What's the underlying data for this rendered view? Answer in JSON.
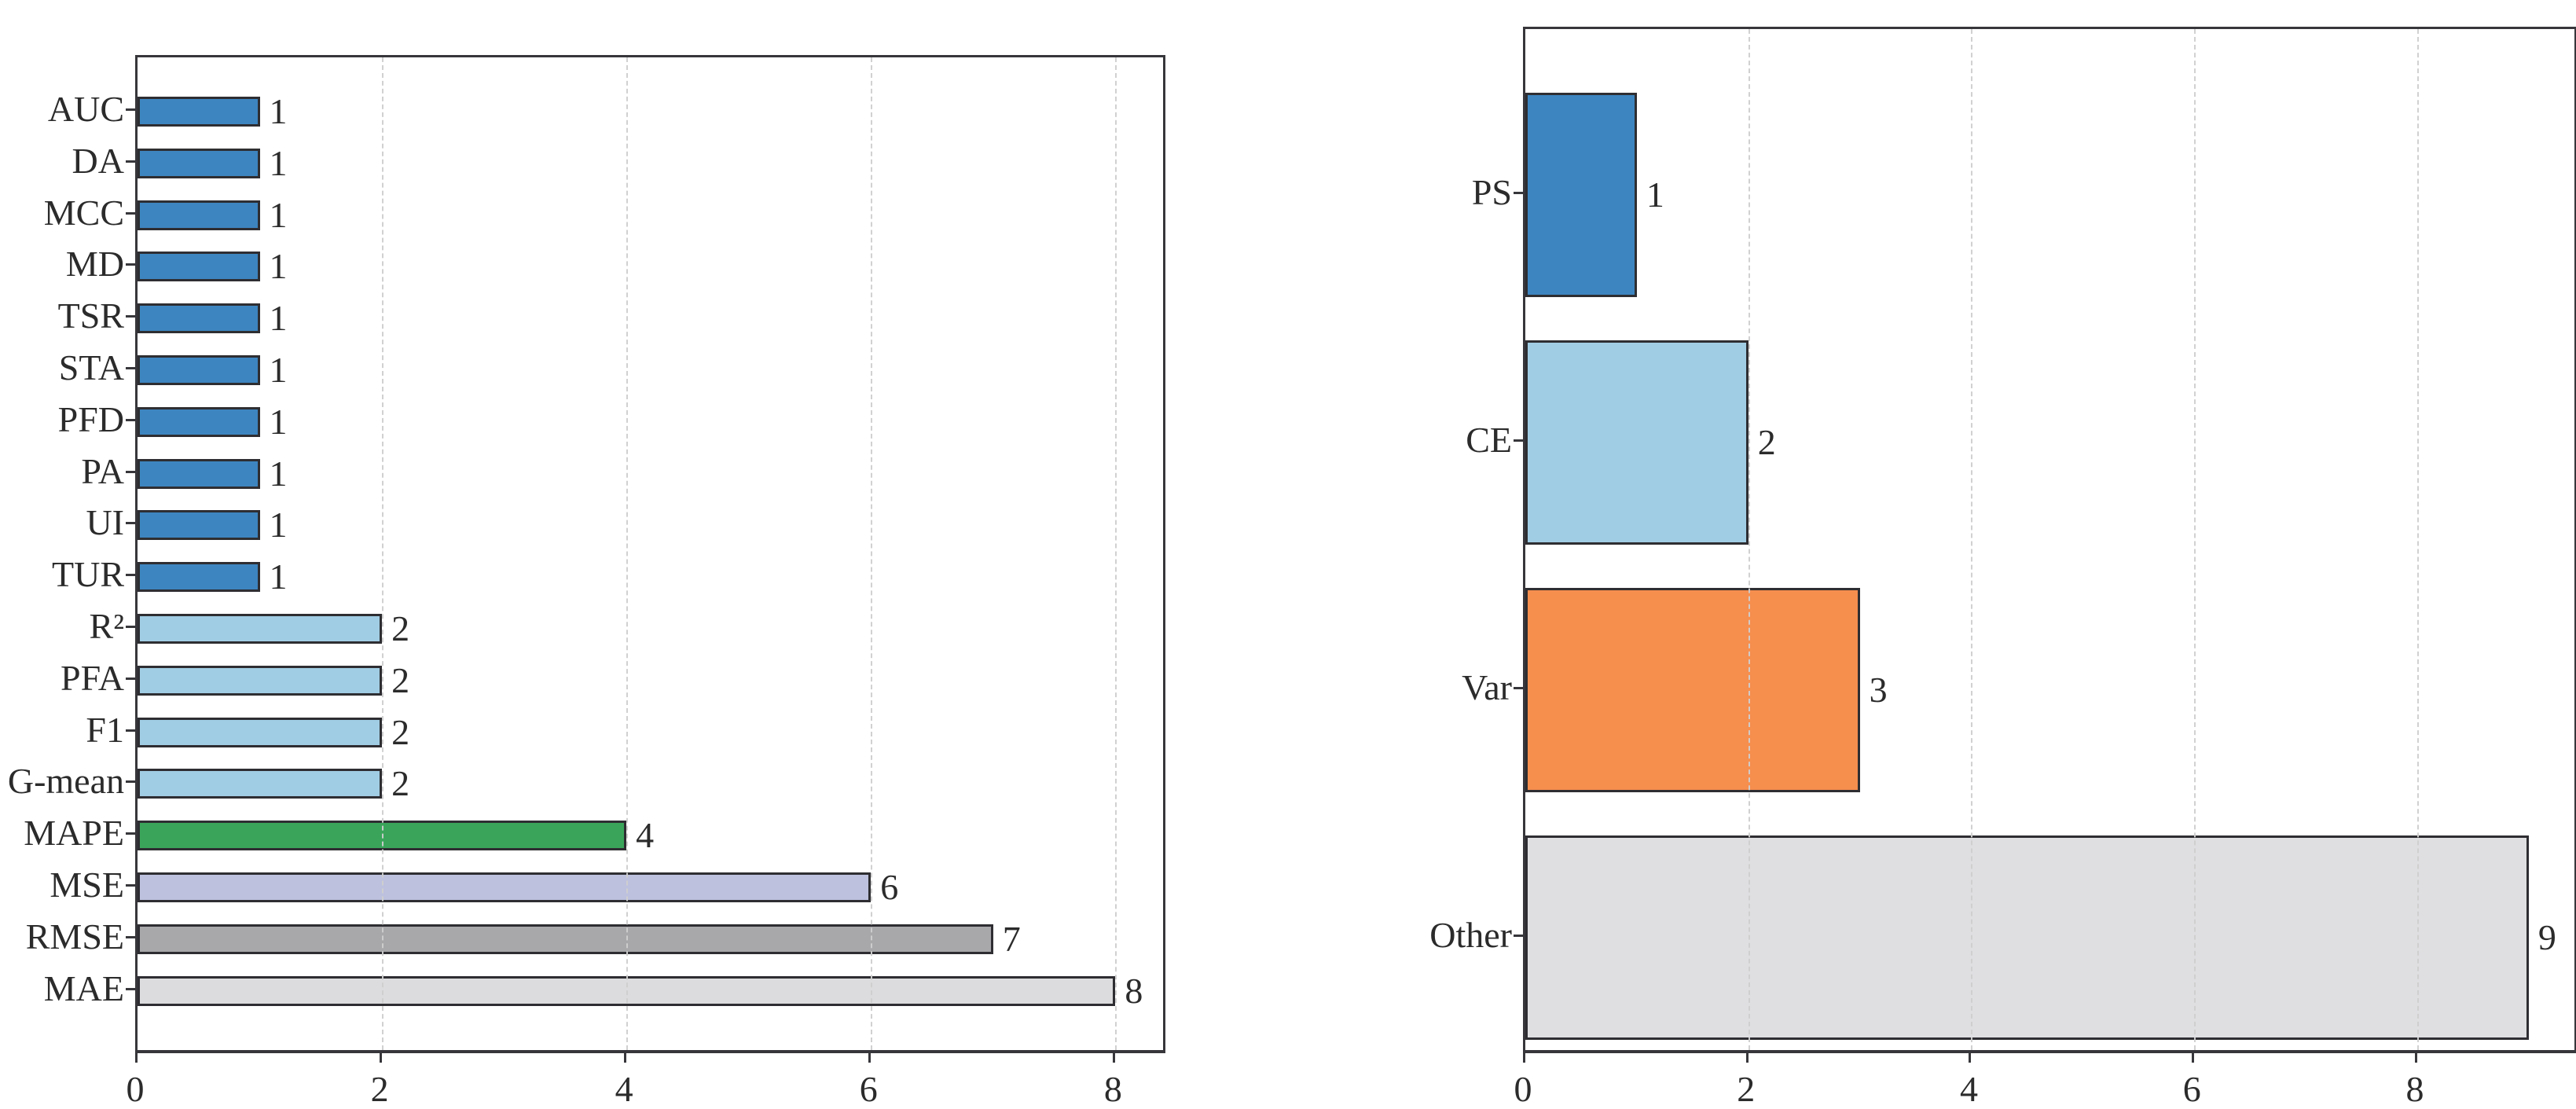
{
  "figure": {
    "background": "#ffffff",
    "text_color": "#2b2b2b",
    "spine_color": "#37373b",
    "bar_edge_color": "#2e2e32",
    "grid_color": "#cfcfcf"
  },
  "chart_data": [
    {
      "type": "bar",
      "orientation": "horizontal",
      "title": "",
      "xlabel": "",
      "ylabel": "",
      "categories": [
        "AUC",
        "DA",
        "MCC",
        "MD",
        "TSR",
        "STA",
        "PFD",
        "PA",
        "UI",
        "TUR",
        "R²",
        "PFA",
        "F1",
        "G-mean",
        "MAPE",
        "MSE",
        "RMSE",
        "MAE"
      ],
      "values": [
        1,
        1,
        1,
        1,
        1,
        1,
        1,
        1,
        1,
        1,
        2,
        2,
        2,
        2,
        4,
        6,
        7,
        8
      ],
      "bar_labels": [
        "1",
        "1",
        "1",
        "1",
        "1",
        "1",
        "1",
        "1",
        "1",
        "1",
        "2",
        "2",
        "2",
        "2",
        "4",
        "6",
        "7",
        "8"
      ],
      "bar_colors": [
        "#3d85c0",
        "#3d85c0",
        "#3d85c0",
        "#3d85c0",
        "#3d85c0",
        "#3d85c0",
        "#3d85c0",
        "#3d85c0",
        "#3d85c0",
        "#3d85c0",
        "#a1cde4",
        "#a1cde4",
        "#a1cde4",
        "#a1cde4",
        "#3aa55a",
        "#bdc1dd",
        "#a8a8ab",
        "#dcdcde"
      ],
      "xtick_labels": [
        "0",
        "2",
        "4",
        "6",
        "8"
      ],
      "xticks": [
        0,
        2,
        4,
        6,
        8
      ],
      "xlim": [
        0,
        8.39
      ],
      "grid": "vertical-dashed-on-top",
      "legend": "none"
    },
    {
      "type": "bar",
      "orientation": "horizontal",
      "title": "",
      "xlabel": "",
      "ylabel": "",
      "categories": [
        "PS",
        "CE",
        "Var",
        "Other"
      ],
      "values": [
        1,
        2,
        3,
        9
      ],
      "bar_labels": [
        "1",
        "2",
        "3",
        "9"
      ],
      "bar_colors": [
        "#3d85c0",
        "#a1cde4",
        "#f68e4e",
        "#dfdfe2"
      ],
      "xtick_labels": [
        "0",
        "2",
        "4",
        "6",
        "8"
      ],
      "xticks": [
        0,
        2,
        4,
        6,
        8
      ],
      "xlim": [
        0,
        9.41
      ],
      "grid": "vertical-dashed-on-top",
      "legend": "none"
    }
  ]
}
